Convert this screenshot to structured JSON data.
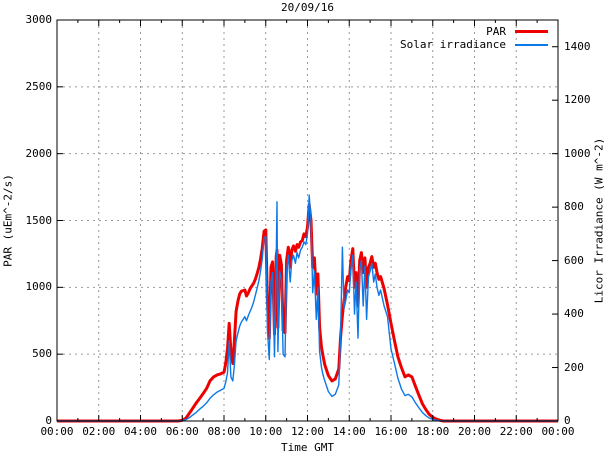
{
  "window": {
    "title": "20/09/16"
  },
  "chart_data": {
    "type": "line",
    "title": "20/09/16",
    "xlabel": "Time GMT",
    "ylabel_left": "PAR (uEm^-2/s)",
    "ylabel_right": "Licor Irradiance (W m^-2)",
    "x_range_hours": [
      0,
      24
    ],
    "y_left_range": [
      0,
      3000
    ],
    "y_right_range": [
      0,
      1500
    ],
    "x_tick_hours": [
      0,
      2,
      4,
      6,
      8,
      10,
      12,
      14,
      16,
      18,
      20,
      22,
      24
    ],
    "x_tick_labels": [
      "00:00",
      "02:00",
      "04:00",
      "06:00",
      "08:00",
      "10:00",
      "12:00",
      "14:00",
      "16:00",
      "18:00",
      "20:00",
      "22:00",
      "00:00"
    ],
    "x_minor_tick_hours": [
      1,
      3,
      5,
      7,
      9,
      11,
      13,
      15,
      17,
      19,
      21,
      23
    ],
    "y_left_ticks": [
      0,
      500,
      1000,
      1500,
      2000,
      2500,
      3000
    ],
    "y_right_ticks": [
      0,
      200,
      400,
      600,
      800,
      1000,
      1200,
      1400
    ],
    "grid": true,
    "grid_color": "#999999",
    "border_color": "#000000",
    "legend_position": "top-right-inside",
    "series": [
      {
        "name": "PAR",
        "axis": "left",
        "color": "#ee0000",
        "line_width": 3,
        "points": [
          [
            0,
            0
          ],
          [
            1,
            0
          ],
          [
            2,
            0
          ],
          [
            3,
            0
          ],
          [
            4,
            0
          ],
          [
            5,
            0
          ],
          [
            5.8,
            0
          ],
          [
            6.0,
            5
          ],
          [
            6.17,
            20
          ],
          [
            6.33,
            55
          ],
          [
            6.5,
            95
          ],
          [
            6.67,
            135
          ],
          [
            6.83,
            168
          ],
          [
            7.0,
            205
          ],
          [
            7.17,
            245
          ],
          [
            7.33,
            300
          ],
          [
            7.5,
            330
          ],
          [
            7.67,
            345
          ],
          [
            7.83,
            352
          ],
          [
            8.0,
            365
          ],
          [
            8.08,
            430
          ],
          [
            8.17,
            540
          ],
          [
            8.25,
            730
          ],
          [
            8.33,
            520
          ],
          [
            8.42,
            430
          ],
          [
            8.5,
            600
          ],
          [
            8.58,
            820
          ],
          [
            8.67,
            900
          ],
          [
            8.75,
            950
          ],
          [
            8.83,
            970
          ],
          [
            9.0,
            980
          ],
          [
            9.08,
            935
          ],
          [
            9.17,
            960
          ],
          [
            9.25,
            990
          ],
          [
            9.33,
            1010
          ],
          [
            9.42,
            1030
          ],
          [
            9.5,
            1060
          ],
          [
            9.58,
            1100
          ],
          [
            9.67,
            1150
          ],
          [
            9.75,
            1210
          ],
          [
            9.83,
            1290
          ],
          [
            9.92,
            1420
          ],
          [
            10.0,
            1430
          ],
          [
            10.08,
            900
          ],
          [
            10.17,
            620
          ],
          [
            10.25,
            1150
          ],
          [
            10.33,
            1190
          ],
          [
            10.42,
            650
          ],
          [
            10.5,
            1230
          ],
          [
            10.54,
            1280
          ],
          [
            10.58,
            700
          ],
          [
            10.67,
            1240
          ],
          [
            10.75,
            1170
          ],
          [
            10.83,
            680
          ],
          [
            10.92,
            660
          ],
          [
            11.0,
            1200
          ],
          [
            11.08,
            1300
          ],
          [
            11.17,
            1150
          ],
          [
            11.25,
            1280
          ],
          [
            11.33,
            1310
          ],
          [
            11.42,
            1270
          ],
          [
            11.5,
            1320
          ],
          [
            11.58,
            1300
          ],
          [
            11.67,
            1340
          ],
          [
            11.75,
            1350
          ],
          [
            11.83,
            1400
          ],
          [
            11.92,
            1380
          ],
          [
            12.0,
            1450
          ],
          [
            12.08,
            1620
          ],
          [
            12.17,
            1500
          ],
          [
            12.25,
            1150
          ],
          [
            12.33,
            1220
          ],
          [
            12.42,
            950
          ],
          [
            12.5,
            1100
          ],
          [
            12.58,
            700
          ],
          [
            12.67,
            550
          ],
          [
            12.75,
            480
          ],
          [
            12.83,
            420
          ],
          [
            13.0,
            340
          ],
          [
            13.17,
            300
          ],
          [
            13.33,
            315
          ],
          [
            13.5,
            390
          ],
          [
            13.58,
            620
          ],
          [
            13.67,
            790
          ],
          [
            13.75,
            900
          ],
          [
            13.83,
            1000
          ],
          [
            13.92,
            1080
          ],
          [
            14.0,
            1050
          ],
          [
            14.08,
            1200
          ],
          [
            14.17,
            1290
          ],
          [
            14.25,
            1000
          ],
          [
            14.33,
            1110
          ],
          [
            14.42,
            860
          ],
          [
            14.5,
            1200
          ],
          [
            14.58,
            1260
          ],
          [
            14.67,
            1110
          ],
          [
            14.75,
            1220
          ],
          [
            14.83,
            1000
          ],
          [
            14.92,
            1150
          ],
          [
            15.0,
            1180
          ],
          [
            15.08,
            1230
          ],
          [
            15.17,
            1150
          ],
          [
            15.25,
            1180
          ],
          [
            15.33,
            1110
          ],
          [
            15.42,
            1060
          ],
          [
            15.5,
            1080
          ],
          [
            15.67,
            990
          ],
          [
            15.83,
            870
          ],
          [
            16.0,
            730
          ],
          [
            16.17,
            600
          ],
          [
            16.33,
            480
          ],
          [
            16.5,
            400
          ],
          [
            16.67,
            330
          ],
          [
            16.83,
            345
          ],
          [
            17.0,
            330
          ],
          [
            17.17,
            260
          ],
          [
            17.33,
            195
          ],
          [
            17.5,
            130
          ],
          [
            17.67,
            85
          ],
          [
            17.83,
            50
          ],
          [
            18.0,
            28
          ],
          [
            18.17,
            14
          ],
          [
            18.33,
            6
          ],
          [
            18.5,
            0
          ],
          [
            19,
            0
          ],
          [
            20,
            0
          ],
          [
            21,
            0
          ],
          [
            22,
            0
          ],
          [
            23,
            0
          ],
          [
            24,
            0
          ]
        ]
      },
      {
        "name": "Solar irradiance",
        "axis": "right",
        "color": "#0c78e8",
        "line_width": 1.4,
        "points": [
          [
            0,
            0
          ],
          [
            1,
            0
          ],
          [
            2,
            0
          ],
          [
            3,
            0
          ],
          [
            4,
            0
          ],
          [
            5,
            0
          ],
          [
            5.8,
            0
          ],
          [
            6.0,
            1
          ],
          [
            6.17,
            5
          ],
          [
            6.33,
            12
          ],
          [
            6.5,
            22
          ],
          [
            6.67,
            32
          ],
          [
            6.83,
            44
          ],
          [
            7.0,
            55
          ],
          [
            7.17,
            68
          ],
          [
            7.33,
            85
          ],
          [
            7.5,
            98
          ],
          [
            7.67,
            108
          ],
          [
            7.83,
            115
          ],
          [
            8.0,
            122
          ],
          [
            8.08,
            145
          ],
          [
            8.17,
            180
          ],
          [
            8.25,
            300
          ],
          [
            8.33,
            165
          ],
          [
            8.42,
            150
          ],
          [
            8.5,
            210
          ],
          [
            8.58,
            300
          ],
          [
            8.67,
            330
          ],
          [
            8.75,
            355
          ],
          [
            8.83,
            370
          ],
          [
            9.0,
            390
          ],
          [
            9.08,
            375
          ],
          [
            9.17,
            395
          ],
          [
            9.25,
            410
          ],
          [
            9.33,
            425
          ],
          [
            9.42,
            445
          ],
          [
            9.5,
            470
          ],
          [
            9.58,
            495
          ],
          [
            9.67,
            525
          ],
          [
            9.75,
            560
          ],
          [
            9.83,
            605
          ],
          [
            9.92,
            685
          ],
          [
            10.0,
            690
          ],
          [
            10.08,
            340
          ],
          [
            10.17,
            230
          ],
          [
            10.25,
            520
          ],
          [
            10.33,
            555
          ],
          [
            10.42,
            240
          ],
          [
            10.5,
            600
          ],
          [
            10.54,
            820
          ],
          [
            10.58,
            260
          ],
          [
            10.67,
            560
          ],
          [
            10.75,
            530
          ],
          [
            10.83,
            250
          ],
          [
            10.92,
            240
          ],
          [
            11.0,
            560
          ],
          [
            11.08,
            620
          ],
          [
            11.17,
            520
          ],
          [
            11.25,
            600
          ],
          [
            11.33,
            620
          ],
          [
            11.42,
            590
          ],
          [
            11.5,
            630
          ],
          [
            11.58,
            610
          ],
          [
            11.67,
            640
          ],
          [
            11.75,
            650
          ],
          [
            11.83,
            670
          ],
          [
            11.92,
            660
          ],
          [
            12.0,
            700
          ],
          [
            12.08,
            845
          ],
          [
            12.17,
            750
          ],
          [
            12.25,
            480
          ],
          [
            12.33,
            560
          ],
          [
            12.42,
            380
          ],
          [
            12.5,
            500
          ],
          [
            12.58,
            260
          ],
          [
            12.67,
            200
          ],
          [
            12.75,
            170
          ],
          [
            12.83,
            150
          ],
          [
            13.0,
            110
          ],
          [
            13.17,
            92
          ],
          [
            13.33,
            100
          ],
          [
            13.5,
            135
          ],
          [
            13.58,
            310
          ],
          [
            13.67,
            650
          ],
          [
            13.75,
            420
          ],
          [
            13.83,
            450
          ],
          [
            13.92,
            490
          ],
          [
            14.0,
            480
          ],
          [
            14.08,
            570
          ],
          [
            14.17,
            620
          ],
          [
            14.25,
            400
          ],
          [
            14.33,
            520
          ],
          [
            14.42,
            310
          ],
          [
            14.5,
            570
          ],
          [
            14.58,
            600
          ],
          [
            14.67,
            430
          ],
          [
            14.75,
            580
          ],
          [
            14.83,
            380
          ],
          [
            14.92,
            540
          ],
          [
            15.0,
            560
          ],
          [
            15.08,
            590
          ],
          [
            15.17,
            520
          ],
          [
            15.25,
            550
          ],
          [
            15.33,
            500
          ],
          [
            15.42,
            470
          ],
          [
            15.5,
            490
          ],
          [
            15.67,
            430
          ],
          [
            15.83,
            390
          ],
          [
            16.0,
            270
          ],
          [
            16.17,
            215
          ],
          [
            16.33,
            160
          ],
          [
            16.5,
            120
          ],
          [
            16.67,
            95
          ],
          [
            16.83,
            100
          ],
          [
            17.0,
            90
          ],
          [
            17.17,
            68
          ],
          [
            17.33,
            50
          ],
          [
            17.5,
            32
          ],
          [
            17.67,
            20
          ],
          [
            17.83,
            11
          ],
          [
            18.0,
            6
          ],
          [
            18.17,
            3
          ],
          [
            18.33,
            1
          ],
          [
            18.5,
            0
          ],
          [
            19,
            0
          ],
          [
            20,
            0
          ],
          [
            21,
            0
          ],
          [
            22,
            0
          ],
          [
            23,
            0
          ],
          [
            24,
            0
          ]
        ]
      }
    ]
  },
  "legend": {
    "items": [
      {
        "label": "PAR"
      },
      {
        "label": "Solar irradiance"
      }
    ]
  }
}
